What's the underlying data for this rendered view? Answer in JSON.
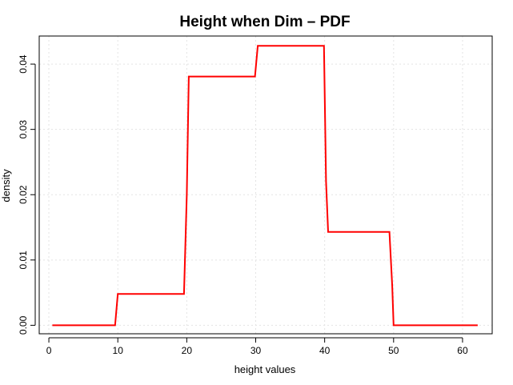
{
  "chart_data": {
    "type": "line",
    "title": "Height when Dim – PDF",
    "xlabel": "height values",
    "ylabel": "density",
    "xlim": [
      -1.4,
      64.3
    ],
    "ylim": [
      -0.0013,
      0.0443
    ],
    "x_ticks": [
      0,
      10,
      20,
      30,
      40,
      50,
      60
    ],
    "y_ticks": [
      0.0,
      0.01,
      0.02,
      0.03,
      0.04
    ],
    "y_tick_labels": [
      "0.00",
      "0.01",
      "0.02",
      "0.03",
      "0.04"
    ],
    "grid": true,
    "colors": {
      "line": "#ff0000"
    },
    "series": [
      {
        "x": [
          0.5,
          9.6,
          10.0,
          19.6,
          20.0,
          20.3,
          29.9,
          30.3,
          39.9,
          40.2,
          40.5,
          49.4,
          49.8,
          50.0,
          62.2
        ],
        "y": [
          0.0,
          0.0,
          0.0048,
          0.0048,
          0.02,
          0.0381,
          0.0381,
          0.0428,
          0.0428,
          0.022,
          0.0143,
          0.0143,
          0.006,
          0.0,
          0.0
        ]
      }
    ]
  }
}
